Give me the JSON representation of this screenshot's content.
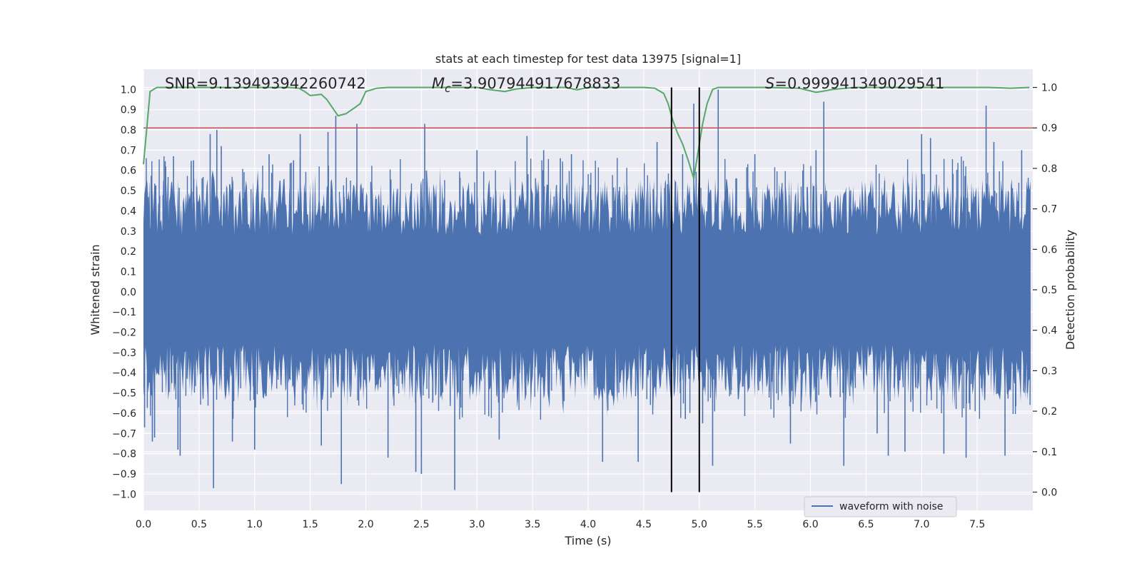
{
  "chart_data": {
    "type": "line",
    "title": "stats at each timestep for test data 13975 [signal=1]",
    "xlabel": "Time (s)",
    "ylabel": "Whitened strain",
    "ylabel_right": "Detection probability",
    "xlim": [
      0.0,
      8.0
    ],
    "ylim": [
      -1.08,
      1.1
    ],
    "ylim_right": [
      -0.045,
      1.045
    ],
    "x_ticks": [
      0.0,
      0.5,
      1.0,
      1.5,
      2.0,
      2.5,
      3.0,
      3.5,
      4.0,
      4.5,
      5.0,
      5.5,
      6.0,
      6.5,
      7.0,
      7.5
    ],
    "x_tick_labels": [
      "0.0",
      "0.5",
      "1.0",
      "1.5",
      "2.0",
      "2.5",
      "3.0",
      "3.5",
      "4.0",
      "4.5",
      "5.0",
      "5.5",
      "6.0",
      "6.5",
      "7.0",
      "7.5"
    ],
    "y_ticks": [
      1.0,
      0.9,
      0.8,
      0.7,
      0.6,
      0.5,
      0.4,
      0.3,
      0.2,
      0.1,
      0.0,
      -0.1,
      -0.2,
      -0.3,
      -0.4,
      -0.5,
      -0.6,
      -0.7,
      -0.8,
      -0.9,
      -1.0
    ],
    "y_tick_labels": [
      "1.0",
      "0.9",
      "0.8",
      "0.7",
      "0.6",
      "0.5",
      "0.4",
      "0.3",
      "0.2",
      "0.1",
      "0.0",
      "−0.1",
      "−0.2",
      "−0.3",
      "−0.4",
      "−0.5",
      "−0.6",
      "−0.7",
      "−0.8",
      "−0.9",
      "−1.0"
    ],
    "y2_ticks": [
      1.0,
      0.9,
      0.8,
      0.7,
      0.6,
      0.5,
      0.4,
      0.3,
      0.2,
      0.1,
      0.0
    ],
    "y2_tick_labels": [
      "1.0",
      "0.9",
      "0.8",
      "0.7",
      "0.6",
      "0.5",
      "0.4",
      "0.3",
      "0.2",
      "0.1",
      "0.0"
    ],
    "grid": true,
    "annotations": {
      "snr_text": "SNR=9.139493942260742",
      "mc_symbol": "M",
      "mc_subscript": "c",
      "mc_value": "=3.907944917678833",
      "s_symbol": "S",
      "s_value": "=0.999941349029541"
    },
    "threshold": {
      "axis": "right",
      "value": 0.9,
      "color": "#c44e52"
    },
    "vertical_lines": [
      4.75,
      5.0
    ],
    "legend": {
      "entries": [
        "waveform with noise"
      ],
      "position": "lower-right"
    },
    "series": [
      {
        "name": "waveform with noise",
        "axis": "left",
        "color": "#4c72b0",
        "description": "whitened noisy strain, dense oscillation roughly between -0.55 and 0.6 with spikes",
        "spikes": [
          [
            0.01,
            -0.67
          ],
          [
            0.07,
            0.52
          ],
          [
            0.08,
            -0.74
          ],
          [
            0.1,
            -0.72
          ],
          [
            0.2,
            0.62
          ],
          [
            0.27,
            0.67
          ],
          [
            0.31,
            -0.78
          ],
          [
            0.33,
            -0.81
          ],
          [
            0.45,
            0.65
          ],
          [
            0.6,
            0.78
          ],
          [
            0.63,
            -0.97
          ],
          [
            0.66,
            0.8
          ],
          [
            0.7,
            0.72
          ],
          [
            0.8,
            -0.74
          ],
          [
            1.0,
            -0.78
          ],
          [
            1.13,
            0.68
          ],
          [
            1.35,
            0.65
          ],
          [
            1.41,
            0.78
          ],
          [
            1.48,
            0.14
          ],
          [
            1.6,
            -0.76
          ],
          [
            1.66,
            0.79
          ],
          [
            1.73,
            0.87
          ],
          [
            1.78,
            -0.95
          ],
          [
            1.92,
            0.83
          ],
          [
            2.2,
            -0.82
          ],
          [
            2.45,
            -0.89
          ],
          [
            2.5,
            -0.9
          ],
          [
            2.53,
            0.83
          ],
          [
            2.8,
            -0.98
          ],
          [
            3.0,
            0.7
          ],
          [
            3.2,
            -0.73
          ],
          [
            3.45,
            0.77
          ],
          [
            3.6,
            0.7
          ],
          [
            3.75,
            0.66
          ],
          [
            3.85,
            0.68
          ],
          [
            4.13,
            -0.84
          ],
          [
            4.45,
            -0.84
          ],
          [
            4.62,
            0.74
          ],
          [
            4.85,
            0.68
          ],
          [
            4.95,
            0.93
          ],
          [
            5.03,
            -0.65
          ],
          [
            5.12,
            -0.86
          ],
          [
            5.17,
            1.0
          ],
          [
            5.5,
            0.68
          ],
          [
            5.82,
            -0.75
          ],
          [
            6.05,
            0.7
          ],
          [
            6.12,
            0.94
          ],
          [
            6.3,
            -0.86
          ],
          [
            6.6,
            -0.7
          ],
          [
            6.7,
            -0.81
          ],
          [
            6.85,
            -0.79
          ],
          [
            7.0,
            0.78
          ],
          [
            7.08,
            0.76
          ],
          [
            7.2,
            -0.8
          ],
          [
            7.4,
            -0.82
          ],
          [
            7.58,
            0.92
          ],
          [
            7.65,
            0.74
          ],
          [
            7.75,
            -0.81
          ],
          [
            7.9,
            0.7
          ]
        ]
      },
      {
        "name": "detection probability",
        "axis": "right",
        "color": "#55a868",
        "x": [
          0.0,
          0.03,
          0.06,
          0.12,
          0.2,
          0.5,
          1.0,
          1.3,
          1.4,
          1.45,
          1.5,
          1.6,
          1.65,
          1.7,
          1.75,
          1.82,
          1.9,
          1.95,
          2.0,
          2.1,
          2.2,
          2.5,
          3.0,
          3.1,
          3.25,
          3.35,
          3.5,
          3.8,
          3.9,
          4.0,
          4.2,
          4.5,
          4.6,
          4.68,
          4.72,
          4.76,
          4.8,
          4.85,
          4.9,
          4.95,
          5.0,
          5.03,
          5.07,
          5.12,
          5.17,
          5.2,
          5.3,
          5.6,
          5.9,
          6.05,
          6.1,
          6.2,
          6.4,
          6.7,
          7.0,
          7.3,
          7.6,
          7.8,
          7.97
        ],
        "y": [
          0.81,
          0.9,
          0.99,
          1.0,
          1.0,
          1.0,
          1.0,
          1.0,
          0.998,
          0.99,
          0.98,
          0.983,
          0.97,
          0.95,
          0.93,
          0.935,
          0.95,
          0.96,
          0.99,
          0.998,
          1.0,
          1.0,
          1.0,
          0.995,
          0.99,
          0.996,
          1.0,
          1.0,
          0.994,
          1.0,
          1.0,
          1.0,
          0.998,
          0.985,
          0.96,
          0.92,
          0.89,
          0.86,
          0.82,
          0.775,
          0.86,
          0.91,
          0.96,
          0.995,
          1.0,
          1.0,
          1.0,
          1.0,
          0.998,
          0.988,
          0.99,
          0.995,
          1.0,
          1.0,
          1.0,
          1.0,
          1.0,
          0.998,
          1.0
        ]
      }
    ]
  }
}
